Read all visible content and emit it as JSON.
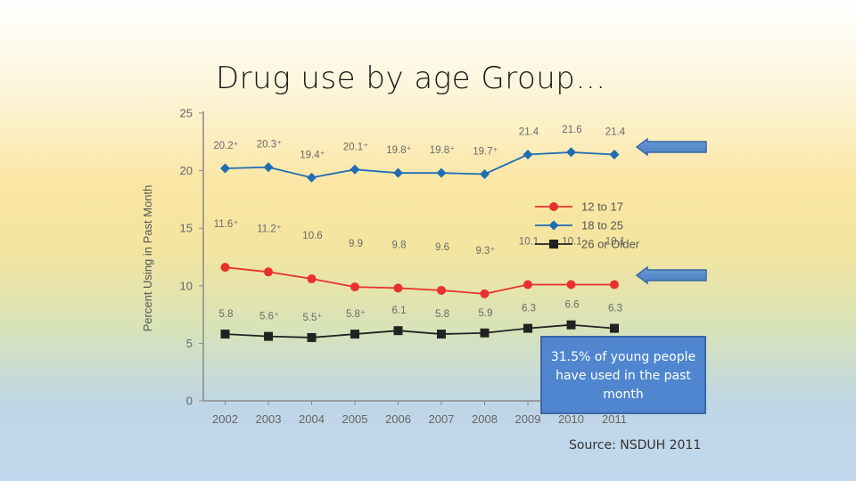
{
  "slide": {
    "title": "Drug use by age Group…",
    "callout": "31.5% of young people have used in the past month",
    "source": "Source: NSDUH 2011"
  },
  "chart_data": {
    "type": "line",
    "title": "",
    "xlabel": "",
    "ylabel": "Percent Using in Past Month",
    "ylim": [
      0,
      25
    ],
    "yticks": [
      0,
      5,
      10,
      15,
      20,
      25
    ],
    "categories": [
      "2002",
      "2003",
      "2004",
      "2005",
      "2006",
      "2007",
      "2008",
      "2009",
      "2010",
      "2011"
    ],
    "legend_position": "right",
    "series": [
      {
        "name": "12 to 17",
        "color": "#e8312e",
        "marker": "circle",
        "values": [
          11.6,
          11.2,
          10.6,
          9.9,
          9.8,
          9.6,
          9.3,
          10.1,
          10.1,
          10.1
        ],
        "labels": [
          "11.6⁺",
          "11.2⁺",
          "10.6",
          "9.9",
          "9.8",
          "9.6",
          "9.3⁺",
          "10.1",
          "10.1",
          "10.1"
        ]
      },
      {
        "name": "18 to 25",
        "color": "#1f6db3",
        "marker": "diamond",
        "values": [
          20.2,
          20.3,
          19.4,
          20.1,
          19.8,
          19.8,
          19.7,
          21.4,
          21.6,
          21.4
        ],
        "labels": [
          "20.2⁺",
          "20.3⁺",
          "19.4⁺",
          "20.1⁺",
          "19.8⁺",
          "19.8⁺",
          "19.7⁺",
          "21.4",
          "21.6",
          "21.4"
        ]
      },
      {
        "name": "26 or Older",
        "color": "#222222",
        "marker": "square",
        "values": [
          5.8,
          5.6,
          5.5,
          5.8,
          6.1,
          5.8,
          5.9,
          6.3,
          6.6,
          6.3
        ],
        "labels": [
          "5.8",
          "5.6⁺",
          "5.5⁺",
          "5.8⁺",
          "6.1",
          "5.8",
          "5.9",
          "6.3",
          "6.6",
          "6.3"
        ]
      }
    ]
  }
}
